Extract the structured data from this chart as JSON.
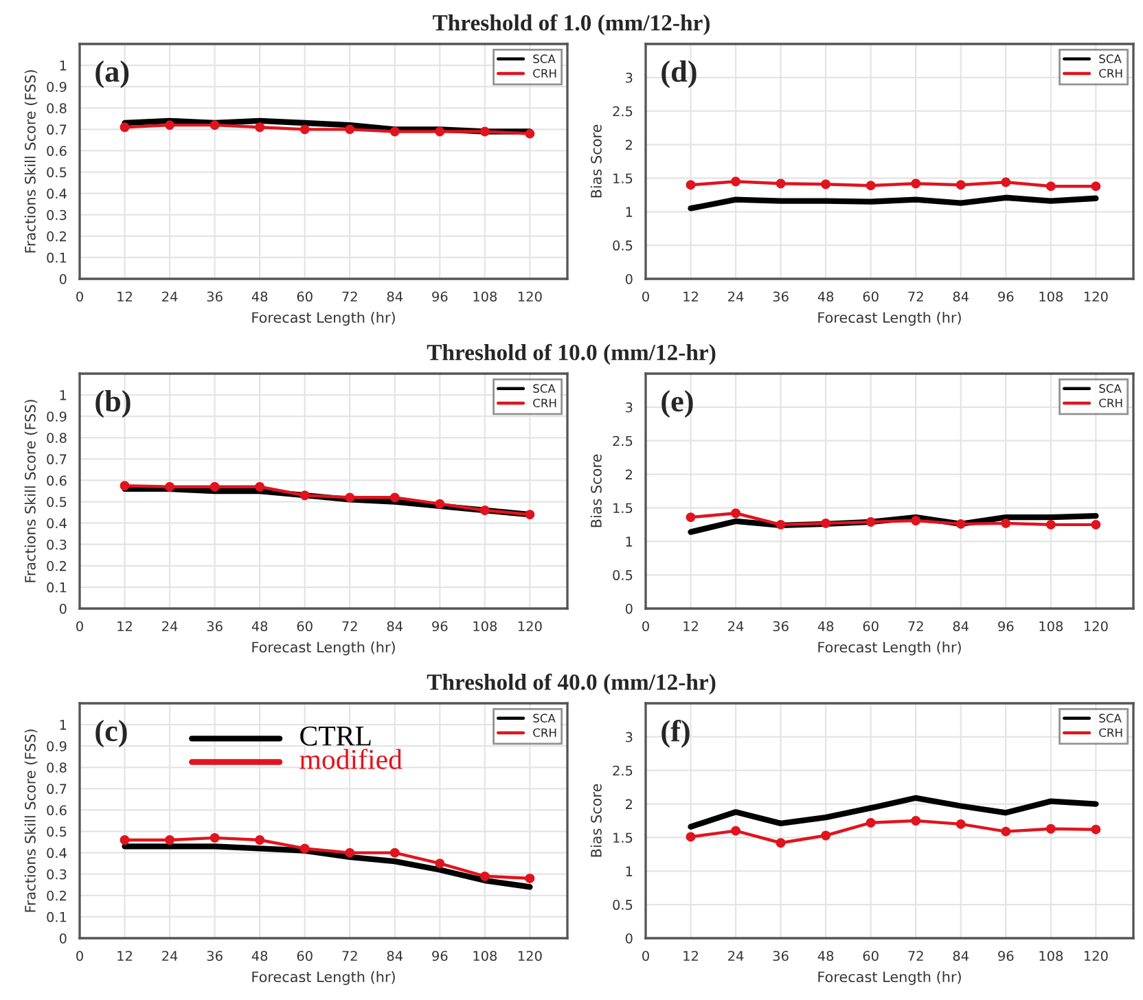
{
  "chart_data": [
    {
      "type": "line",
      "title": "Threshold of 1.0 (mm/12-hr)",
      "xlabel": "Forecast Length (hr)",
      "ylabel": "Fractions Skill Score (FSS)",
      "annotations": [
        "(a)"
      ],
      "x": [
        12,
        24,
        36,
        48,
        60,
        72,
        84,
        96,
        108,
        120
      ],
      "xlim": [
        0,
        130
      ],
      "xticks": [
        0,
        12,
        24,
        36,
        48,
        60,
        72,
        84,
        96,
        108,
        120
      ],
      "ylim": [
        0,
        1.1
      ],
      "yticks": [
        0,
        0.1,
        0.2,
        0.3,
        0.4,
        0.5,
        0.6,
        0.7,
        0.8,
        0.9,
        1
      ],
      "grid": true,
      "legend": "top right",
      "series": [
        {
          "name": "SCA",
          "color": "#000000",
          "marker": "none",
          "values": [
            0.73,
            0.74,
            0.73,
            0.74,
            0.73,
            0.72,
            0.7,
            0.7,
            0.69,
            0.69
          ]
        },
        {
          "name": "CRH",
          "color": "#e0141e",
          "marker": "circle",
          "values": [
            0.71,
            0.72,
            0.72,
            0.71,
            0.7,
            0.7,
            0.69,
            0.69,
            0.69,
            0.68
          ]
        }
      ]
    },
    {
      "type": "line",
      "xlabel": "Forecast Length (hr)",
      "ylabel": "Bias Score",
      "annotations": [
        "(d)"
      ],
      "x": [
        12,
        24,
        36,
        48,
        60,
        72,
        84,
        96,
        108,
        120
      ],
      "xlim": [
        0,
        130
      ],
      "xticks": [
        0,
        12,
        24,
        36,
        48,
        60,
        72,
        84,
        96,
        108,
        120
      ],
      "ylim": [
        0,
        3.5
      ],
      "yticks": [
        0,
        0.5,
        1,
        1.5,
        2,
        2.5,
        3
      ],
      "grid": true,
      "legend": "top right",
      "series": [
        {
          "name": "SCA",
          "color": "#000000",
          "marker": "none",
          "values": [
            1.05,
            1.18,
            1.16,
            1.16,
            1.15,
            1.18,
            1.13,
            1.21,
            1.16,
            1.2
          ]
        },
        {
          "name": "CRH",
          "color": "#e0141e",
          "marker": "circle",
          "values": [
            1.4,
            1.45,
            1.42,
            1.41,
            1.39,
            1.42,
            1.4,
            1.44,
            1.38,
            1.38
          ]
        }
      ]
    },
    {
      "type": "line",
      "title": "Threshold of 10.0 (mm/12-hr)",
      "xlabel": "Forecast Length (hr)",
      "ylabel": "Fractions Skill Score (FSS)",
      "annotations": [
        "(b)"
      ],
      "x": [
        12,
        24,
        36,
        48,
        60,
        72,
        84,
        96,
        108,
        120
      ],
      "xlim": [
        0,
        130
      ],
      "xticks": [
        0,
        12,
        24,
        36,
        48,
        60,
        72,
        84,
        96,
        108,
        120
      ],
      "ylim": [
        0,
        1.1
      ],
      "yticks": [
        0,
        0.1,
        0.2,
        0.3,
        0.4,
        0.5,
        0.6,
        0.7,
        0.8,
        0.9,
        1
      ],
      "grid": true,
      "legend": "top right",
      "series": [
        {
          "name": "SCA",
          "color": "#000000",
          "marker": "none",
          "values": [
            0.56,
            0.56,
            0.55,
            0.55,
            0.53,
            0.51,
            0.5,
            0.48,
            0.46,
            0.44
          ]
        },
        {
          "name": "CRH",
          "color": "#e0141e",
          "marker": "circle",
          "values": [
            0.575,
            0.57,
            0.57,
            0.57,
            0.53,
            0.52,
            0.52,
            0.49,
            0.46,
            0.44
          ]
        }
      ]
    },
    {
      "type": "line",
      "xlabel": "Forecast Length (hr)",
      "ylabel": "Bias Score",
      "annotations": [
        "(e)"
      ],
      "x": [
        12,
        24,
        36,
        48,
        60,
        72,
        84,
        96,
        108,
        120
      ],
      "xlim": [
        0,
        130
      ],
      "xticks": [
        0,
        12,
        24,
        36,
        48,
        60,
        72,
        84,
        96,
        108,
        120
      ],
      "ylim": [
        0,
        3.5
      ],
      "yticks": [
        0,
        0.5,
        1,
        1.5,
        2,
        2.5,
        3
      ],
      "grid": true,
      "legend": "top right",
      "series": [
        {
          "name": "SCA",
          "color": "#000000",
          "marker": "none",
          "values": [
            1.14,
            1.3,
            1.24,
            1.26,
            1.29,
            1.36,
            1.26,
            1.36,
            1.36,
            1.38
          ]
        },
        {
          "name": "CRH",
          "color": "#e0141e",
          "marker": "circle",
          "values": [
            1.36,
            1.42,
            1.25,
            1.27,
            1.29,
            1.31,
            1.26,
            1.27,
            1.25,
            1.25
          ]
        }
      ]
    },
    {
      "type": "line",
      "title": "Threshold of 40.0 (mm/12-hr)",
      "xlabel": "Forecast Length (hr)",
      "ylabel": "Fractions Skill Score (FSS)",
      "annotations": [
        "(c)",
        "CTRL",
        "modified"
      ],
      "x": [
        12,
        24,
        36,
        48,
        60,
        72,
        84,
        96,
        108,
        120
      ],
      "xlim": [
        0,
        130
      ],
      "xticks": [
        0,
        12,
        24,
        36,
        48,
        60,
        72,
        84,
        96,
        108,
        120
      ],
      "ylim": [
        0,
        1.1
      ],
      "yticks": [
        0,
        0.1,
        0.2,
        0.3,
        0.4,
        0.5,
        0.6,
        0.7,
        0.8,
        0.9,
        1
      ],
      "grid": true,
      "legend": "top right",
      "series": [
        {
          "name": "SCA",
          "color": "#000000",
          "marker": "none",
          "values": [
            0.43,
            0.43,
            0.43,
            0.42,
            0.41,
            0.38,
            0.36,
            0.32,
            0.27,
            0.24
          ]
        },
        {
          "name": "CRH",
          "color": "#e0141e",
          "marker": "circle",
          "values": [
            0.46,
            0.46,
            0.47,
            0.46,
            0.42,
            0.4,
            0.4,
            0.35,
            0.29,
            0.28
          ]
        }
      ]
    },
    {
      "type": "line",
      "xlabel": "Forecast Length (hr)",
      "ylabel": "Bias Score",
      "annotations": [
        "(f)"
      ],
      "x": [
        12,
        24,
        36,
        48,
        60,
        72,
        84,
        96,
        108,
        120
      ],
      "xlim": [
        0,
        130
      ],
      "xticks": [
        0,
        12,
        24,
        36,
        48,
        60,
        72,
        84,
        96,
        108,
        120
      ],
      "ylim": [
        0,
        3.5
      ],
      "yticks": [
        0,
        0.5,
        1,
        1.5,
        2,
        2.5,
        3
      ],
      "grid": true,
      "legend": "top right",
      "series": [
        {
          "name": "SCA",
          "color": "#000000",
          "marker": "none",
          "values": [
            1.66,
            1.88,
            1.71,
            1.8,
            1.94,
            2.09,
            1.97,
            1.87,
            2.04,
            2.0
          ]
        },
        {
          "name": "CRH",
          "color": "#e0141e",
          "marker": "circle",
          "values": [
            1.51,
            1.6,
            1.42,
            1.53,
            1.72,
            1.75,
            1.7,
            1.59,
            1.63,
            1.62
          ]
        }
      ]
    }
  ]
}
